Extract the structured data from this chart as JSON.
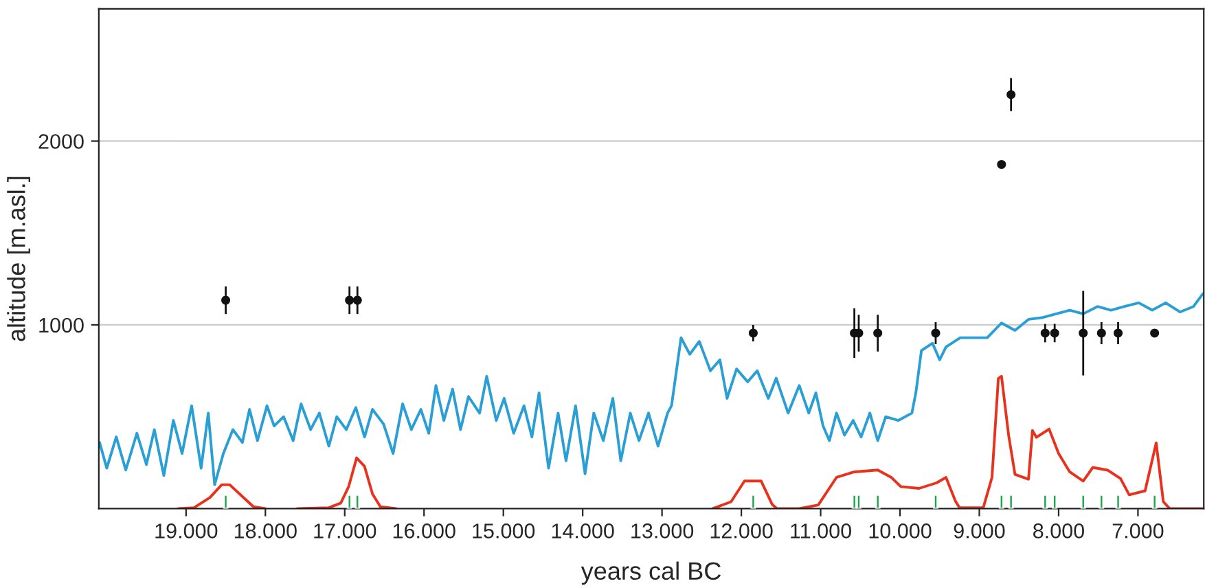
{
  "chart_data": {
    "type": "line",
    "xlabel": "years cal BC",
    "ylabel": "altitude [m.asl.]",
    "xlim": [
      20100,
      6170
    ],
    "ylim": [
      0,
      2720
    ],
    "xticks": [
      {
        "value": 19000,
        "label": "19.000"
      },
      {
        "value": 18000,
        "label": "18.000"
      },
      {
        "value": 17000,
        "label": "17.000"
      },
      {
        "value": 16000,
        "label": "16.000"
      },
      {
        "value": 15000,
        "label": "15.000"
      },
      {
        "value": 14000,
        "label": "14.000"
      },
      {
        "value": 13000,
        "label": "13.000"
      },
      {
        "value": 12000,
        "label": "12.000"
      },
      {
        "value": 11000,
        "label": "11.000"
      },
      {
        "value": 10000,
        "label": "10.000"
      },
      {
        "value": 9000,
        "label": "9.000"
      },
      {
        "value": 8000,
        "label": "8.000"
      },
      {
        "value": 7000,
        "label": "7.000"
      }
    ],
    "yticks": [
      1000,
      2000
    ],
    "grid": "y",
    "legend": false,
    "series": [
      {
        "color": "#2a9fd6",
        "x": [
          20090,
          20000,
          19880,
          19760,
          19620,
          19500,
          19400,
          19280,
          19160,
          19050,
          18930,
          18810,
          18720,
          18640,
          18530,
          18410,
          18290,
          18200,
          18100,
          17980,
          17890,
          17770,
          17650,
          17550,
          17430,
          17320,
          17200,
          17100,
          16980,
          16860,
          16750,
          16650,
          16510,
          16390,
          16270,
          16160,
          16040,
          15940,
          15850,
          15750,
          15640,
          15540,
          15440,
          15300,
          15210,
          15090,
          14990,
          14870,
          14740,
          14640,
          14550,
          14430,
          14310,
          14210,
          14090,
          13970,
          13860,
          13740,
          13620,
          13520,
          13400,
          13290,
          13170,
          13050,
          12930,
          12880,
          12760,
          12650,
          12530,
          12390,
          12270,
          12180,
          12060,
          11920,
          11800,
          11660,
          11560,
          11410,
          11270,
          11150,
          11060,
          10970,
          10890,
          10800,
          10700,
          10590,
          10490,
          10380,
          10280,
          10180,
          10020,
          9850,
          9800,
          9730,
          9590,
          9500,
          9420,
          9240,
          9070,
          8900,
          8720,
          8550,
          8380,
          8200,
          8030,
          7860,
          7690,
          7510,
          7340,
          7170,
          6990,
          6820,
          6650,
          6470,
          6300,
          6180
        ],
        "values": [
          360,
          220,
          390,
          210,
          410,
          240,
          430,
          180,
          480,
          300,
          560,
          220,
          520,
          130,
          300,
          430,
          360,
          540,
          370,
          560,
          450,
          500,
          370,
          570,
          430,
          520,
          340,
          500,
          430,
          550,
          390,
          540,
          460,
          300,
          570,
          430,
          540,
          410,
          670,
          480,
          650,
          430,
          610,
          520,
          720,
          480,
          600,
          410,
          560,
          390,
          630,
          220,
          520,
          260,
          560,
          190,
          520,
          370,
          600,
          260,
          520,
          370,
          520,
          340,
          520,
          560,
          930,
          840,
          910,
          750,
          810,
          600,
          760,
          690,
          750,
          600,
          710,
          520,
          670,
          520,
          630,
          450,
          370,
          520,
          400,
          480,
          390,
          520,
          370,
          500,
          480,
          520,
          630,
          860,
          900,
          810,
          880,
          930,
          930,
          930,
          1010,
          970,
          1030,
          1040,
          1060,
          1080,
          1060,
          1100,
          1080,
          1100,
          1120,
          1080,
          1120,
          1070,
          1100,
          1170
        ]
      },
      {
        "type": "line",
        "color": "#e8321e",
        "x": [
          19100,
          18900,
          18700,
          18550,
          18450,
          18300,
          18150,
          18000,
          17800,
          17600,
          17200,
          17050,
          16950,
          16850,
          16750,
          16650,
          16550,
          16350,
          14000,
          12360,
          12130,
          11960,
          11750,
          11610,
          11550,
          11270,
          11030,
          10800,
          10575,
          10280,
          10110,
          9990,
          9760,
          9540,
          9420,
          9300,
          9250,
          8950,
          8840,
          8760,
          8720,
          8630,
          8550,
          8380,
          8330,
          8280,
          8120,
          8000,
          7860,
          7690,
          7570,
          7380,
          7220,
          7110,
          6910,
          6770,
          6680,
          6600,
          6180
        ],
        "values": [
          0,
          5,
          60,
          130,
          130,
          70,
          10,
          0,
          null,
          0,
          5,
          30,
          120,
          276,
          230,
          80,
          10,
          0,
          null,
          0,
          37,
          150,
          150,
          22,
          0,
          0,
          20,
          170,
          200,
          210,
          170,
          120,
          110,
          140,
          170,
          40,
          5,
          5,
          170,
          709,
          720,
          398,
          186,
          160,
          425,
          388,
          433,
          300,
          200,
          150,
          224,
          209,
          164,
          75,
          97,
          358,
          37,
          0,
          0
        ]
      },
      {
        "type": "bar",
        "color": "#1aa84a",
        "x": [
          18500,
          16940,
          16840,
          11850,
          10575,
          10520,
          10280,
          9550,
          8720,
          8600,
          8170,
          8050,
          7690,
          7460,
          7250,
          6790
        ],
        "values": [
          75,
          75,
          75,
          75,
          75,
          75,
          75,
          75,
          75,
          75,
          75,
          75,
          75,
          75,
          75,
          75
        ]
      },
      {
        "type": "scatter",
        "color": "#111111",
        "marker": "circle",
        "x": [
          18500,
          16940,
          16840,
          11850,
          10575,
          10520,
          10280,
          9550,
          8720,
          8600,
          8170,
          8050,
          7690,
          7460,
          7250,
          6790
        ],
        "values": [
          1134,
          1134,
          1134,
          955,
          955,
          955,
          955,
          955,
          1873,
          2253,
          955,
          955,
          955,
          955,
          955,
          955
        ],
        "errors": [
          75,
          75,
          75,
          45,
          135,
          100,
          100,
          60,
          null,
          90,
          50,
          50,
          230,
          60,
          60,
          null
        ]
      }
    ]
  }
}
